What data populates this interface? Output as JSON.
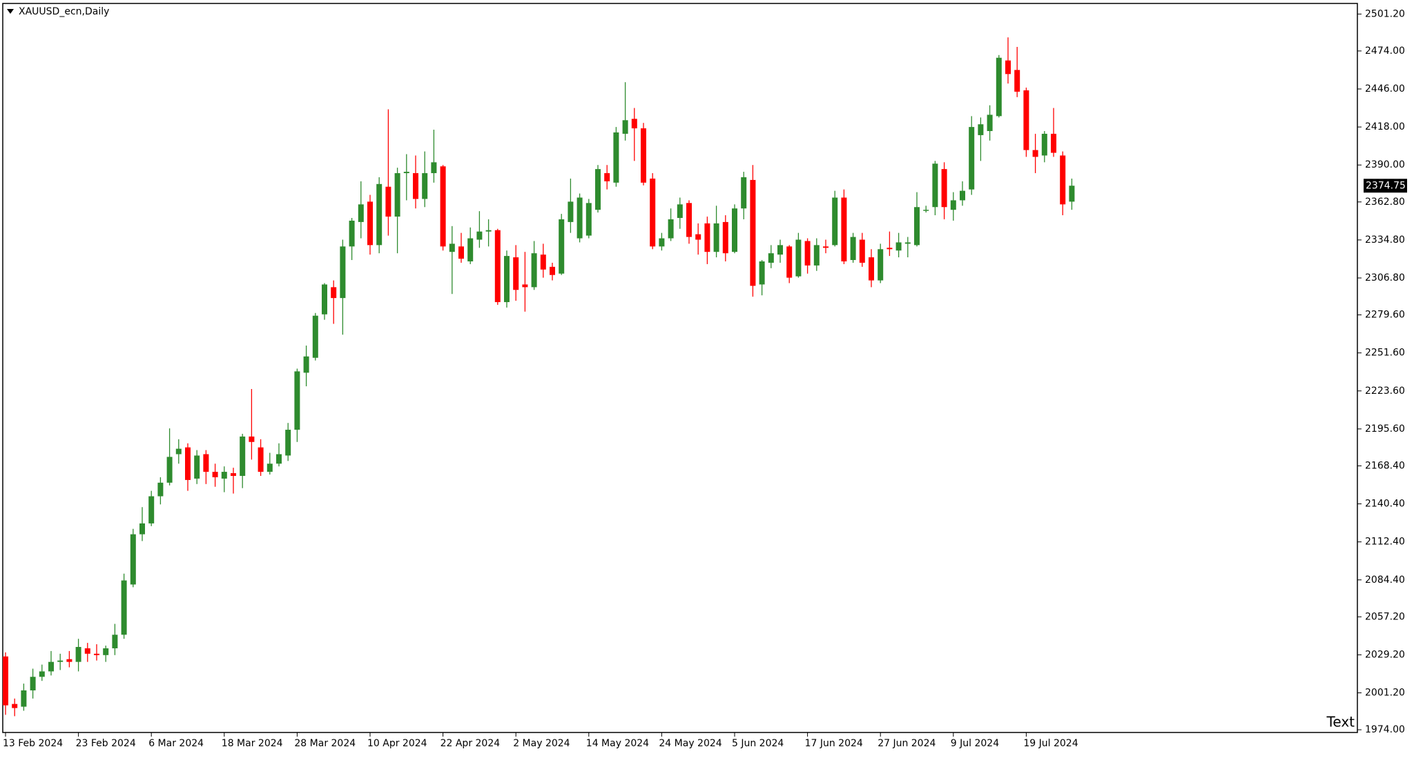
{
  "chart_data": {
    "type": "candlestick",
    "title": "XAUUSD_ecn,Daily",
    "annotation": "Text",
    "up_color": "#2e8b2e",
    "down_color": "#ff0000",
    "last_price": 2374.75,
    "categories": [
      "13 Feb 2024",
      null,
      null,
      null,
      null,
      null,
      null,
      null,
      "23 Feb 2024",
      null,
      null,
      null,
      null,
      null,
      null,
      null,
      "6 Mar 2024",
      null,
      null,
      null,
      null,
      null,
      null,
      null,
      "18 Mar 2024",
      null,
      null,
      null,
      null,
      null,
      null,
      null,
      "28 Mar 2024",
      null,
      null,
      null,
      null,
      null,
      null,
      null,
      "10 Apr 2024",
      null,
      null,
      null,
      null,
      null,
      null,
      null,
      "22 Apr 2024",
      null,
      null,
      null,
      null,
      null,
      null,
      null,
      "2 May 2024",
      null,
      null,
      null,
      null,
      null,
      null,
      null,
      "14 May 2024",
      null,
      null,
      null,
      null,
      null,
      null,
      null,
      "24 May 2024",
      null,
      null,
      null,
      null,
      null,
      null,
      null,
      "5 Jun 2024",
      null,
      null,
      null,
      null,
      null,
      null,
      null,
      "17 Jun 2024",
      null,
      null,
      null,
      null,
      null,
      null,
      null,
      "27 Jun 2024",
      null,
      null,
      null,
      null,
      null,
      null,
      null,
      "9 Jul 2024",
      null,
      null,
      null,
      null,
      null,
      null,
      null,
      "19 Jul 2024",
      null,
      null,
      null,
      null,
      null
    ],
    "open": [
      2028,
      1993,
      1991,
      2003,
      2013,
      2017,
      2024,
      2026,
      2024,
      2034,
      2030,
      2029,
      2034,
      2044,
      2081,
      2118,
      2126,
      2146,
      2156,
      2177,
      2182,
      2159,
      2177,
      2164,
      2159,
      2163,
      2161,
      2190,
      2182,
      2164,
      2170,
      2176,
      2195,
      2237,
      2248,
      2280,
      2300,
      2292,
      2330,
      2348,
      2363,
      2331,
      2374,
      2352,
      2384,
      2384,
      2365,
      2384,
      2389,
      2326,
      2330,
      2319,
      2335,
      2341,
      2342,
      2289,
      2322,
      2302,
      2300,
      2324,
      2315,
      2310,
      2348,
      2336,
      2338,
      2357,
      2384,
      2377,
      2413,
      2424,
      2417,
      2380,
      2330,
      2336,
      2351,
      2362,
      2339,
      2347,
      2326,
      2348,
      2326,
      2358,
      2379,
      2302,
      2318,
      2324,
      2330,
      2308,
      2334,
      2316,
      2330,
      2331,
      2366,
      2320,
      2335,
      2322,
      2305,
      2329,
      2327,
      2332,
      2331,
      2357,
      2359,
      2387,
      2357,
      2364,
      2372,
      2412,
      2415,
      2426,
      2467,
      2460,
      2445,
      2401,
      2397,
      2413,
      2397,
      2363
    ],
    "high": [
      2031,
      1997,
      2008,
      2019,
      2022,
      2032,
      2030,
      2032,
      2041,
      2038,
      2037,
      2036,
      2052,
      2089,
      2122,
      2138,
      2150,
      2160,
      2196,
      2188,
      2185,
      2180,
      2180,
      2170,
      2168,
      2167,
      2192,
      2225,
      2188,
      2178,
      2185,
      2200,
      2240,
      2257,
      2281,
      2303,
      2305,
      2335,
      2351,
      2378,
      2368,
      2381,
      2431,
      2388,
      2398,
      2397,
      2400,
      2416,
      2390,
      2345,
      2340,
      2344,
      2356,
      2350,
      2343,
      2327,
      2331,
      2326,
      2334,
      2332,
      2318,
      2354,
      2380,
      2369,
      2365,
      2390,
      2390,
      2418,
      2451,
      2432,
      2421,
      2384,
      2340,
      2358,
      2366,
      2364,
      2347,
      2352,
      2360,
      2353,
      2361,
      2385,
      2390,
      2320,
      2331,
      2335,
      2331,
      2340,
      2336,
      2336,
      2335,
      2371,
      2372,
      2340,
      2340,
      2328,
      2332,
      2341,
      2340,
      2337,
      2370,
      2360,
      2393,
      2392,
      2370,
      2378,
      2426,
      2425,
      2434,
      2471,
      2484,
      2477,
      2447,
      2413,
      2415,
      2432,
      2400,
      2380
    ],
    "low": [
      1985,
      1984,
      1988,
      1997,
      2010,
      2014,
      2018,
      2020,
      2017,
      2024,
      2025,
      2024,
      2029,
      2041,
      2079,
      2113,
      2124,
      2140,
      2154,
      2170,
      2150,
      2155,
      2155,
      2153,
      2149,
      2148,
      2152,
      2173,
      2161,
      2162,
      2168,
      2172,
      2186,
      2227,
      2246,
      2276,
      2273,
      2265,
      2320,
      2336,
      2324,
      2325,
      2338,
      2325,
      2364,
      2358,
      2359,
      2377,
      2327,
      2295,
      2318,
      2317,
      2329,
      2330,
      2287,
      2285,
      2290,
      2282,
      2298,
      2307,
      2305,
      2309,
      2340,
      2333,
      2336,
      2355,
      2372,
      2374,
      2408,
      2393,
      2375,
      2328,
      2327,
      2334,
      2343,
      2332,
      2324,
      2317,
      2322,
      2319,
      2325,
      2350,
      2293,
      2294,
      2314,
      2318,
      2303,
      2307,
      2310,
      2312,
      2325,
      2330,
      2317,
      2318,
      2315,
      2300,
      2303,
      2323,
      2322,
      2322,
      2330,
      2355,
      2353,
      2350,
      2349,
      2360,
      2368,
      2393,
      2408,
      2425,
      2450,
      2440,
      2396,
      2384,
      2392,
      2396,
      2353,
      2357
    ],
    "close": [
      1992,
      1990,
      2003,
      2013,
      2017,
      2024,
      2025,
      2024,
      2035,
      2030,
      2029,
      2034,
      2044,
      2084,
      2118,
      2126,
      2146,
      2156,
      2175,
      2181,
      2158,
      2176,
      2164,
      2160,
      2164,
      2161,
      2190,
      2186,
      2164,
      2170,
      2177,
      2195,
      2238,
      2249,
      2279,
      2302,
      2292,
      2330,
      2349,
      2361,
      2331,
      2376,
      2352,
      2384,
      2385,
      2365,
      2384,
      2392,
      2330,
      2332,
      2321,
      2336,
      2341,
      2342,
      2289,
      2323,
      2298,
      2300,
      2325,
      2313,
      2309,
      2350,
      2363,
      2366,
      2362,
      2387,
      2378,
      2414,
      2423,
      2417,
      2377,
      2330,
      2336,
      2350,
      2361,
      2337,
      2335,
      2326,
      2347,
      2325,
      2358,
      2381,
      2301,
      2319,
      2325,
      2331,
      2307,
      2335,
      2316,
      2331,
      2329,
      2366,
      2319,
      2337,
      2318,
      2305,
      2328,
      2328,
      2333,
      2333,
      2359,
      2357,
      2391,
      2359,
      2364,
      2371,
      2418,
      2420,
      2427,
      2469,
      2457,
      2444,
      2401,
      2396,
      2413,
      2399,
      2361,
      2374.75
    ],
    "ylim": [
      1972,
      2509
    ],
    "yticks": [
      {
        "value": 1974,
        "label": "1974.00"
      },
      {
        "value": 2001.2,
        "label": "2001.20"
      },
      {
        "value": 2029.2,
        "label": "2029.20"
      },
      {
        "value": 2057.2,
        "label": "2057.20"
      },
      {
        "value": 2084.4,
        "label": "2084.40"
      },
      {
        "value": 2112.4,
        "label": "2112.40"
      },
      {
        "value": 2140.4,
        "label": "2140.40"
      },
      {
        "value": 2168.4,
        "label": "2168.40"
      },
      {
        "value": 2195.6,
        "label": "2195.60"
      },
      {
        "value": 2223.6,
        "label": "2223.60"
      },
      {
        "value": 2251.6,
        "label": "2251.60"
      },
      {
        "value": 2279.6,
        "label": "2279.60"
      },
      {
        "value": 2306.8,
        "label": "2306.80"
      },
      {
        "value": 2334.8,
        "label": "2334.80"
      },
      {
        "value": 2362.8,
        "label": "2362.80"
      },
      {
        "value": 2390,
        "label": "2390.00"
      },
      {
        "value": 2418,
        "label": "2418.00"
      },
      {
        "value": 2446,
        "label": "2446.00"
      },
      {
        "value": 2474,
        "label": "2474.00"
      },
      {
        "value": 2501.2,
        "label": "2501.20"
      }
    ]
  }
}
